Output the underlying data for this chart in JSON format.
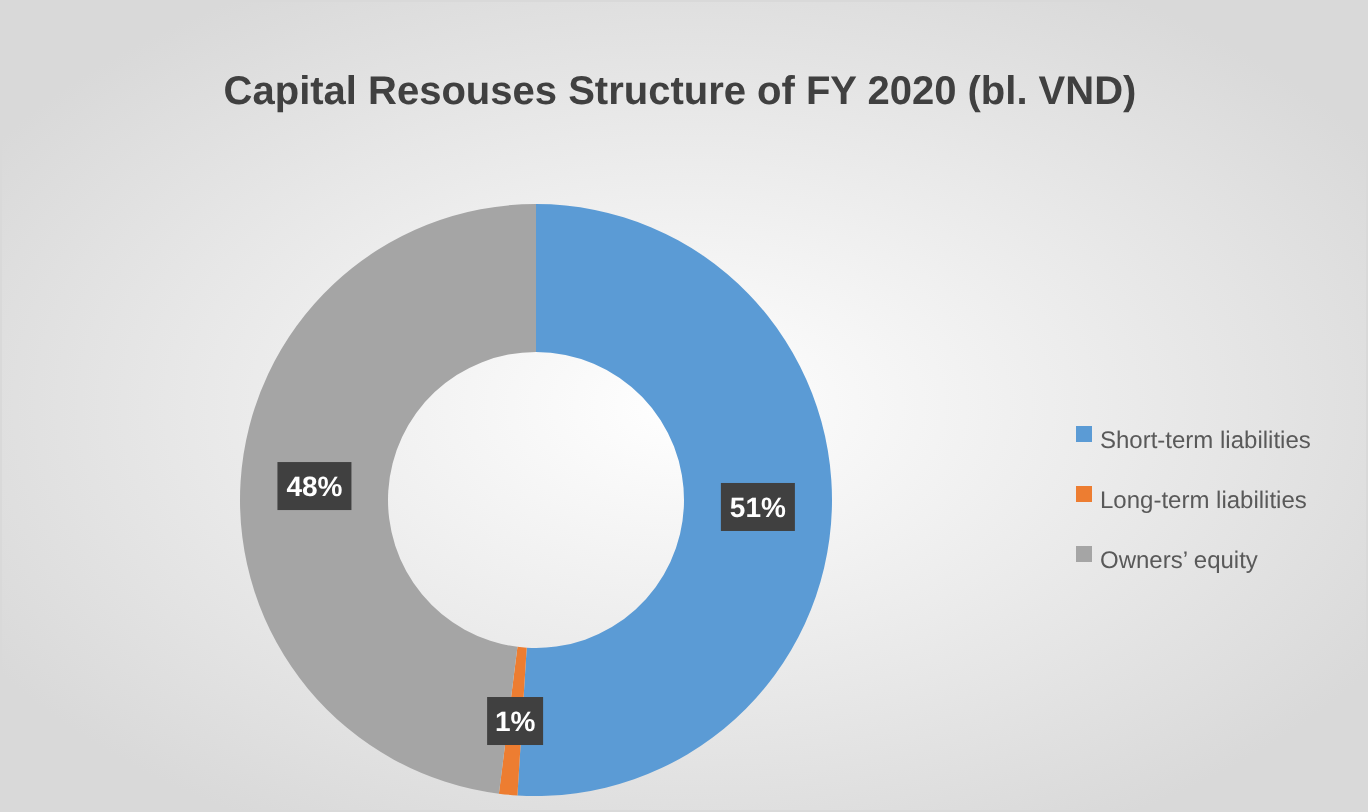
{
  "chart_data": {
    "type": "donut",
    "title": "Capital Resouses Structure of FY 2020 (bl. VND)",
    "categories": [
      "Short-term liabilities",
      "Long-term liabilities",
      "Owners’ equity"
    ],
    "values": [
      51,
      1,
      48
    ],
    "colors": [
      "#5b9bd5",
      "#ed7d31",
      "#a5a5a5"
    ],
    "value_labels": [
      "51%",
      "1%",
      "48%"
    ],
    "legend": "right"
  }
}
